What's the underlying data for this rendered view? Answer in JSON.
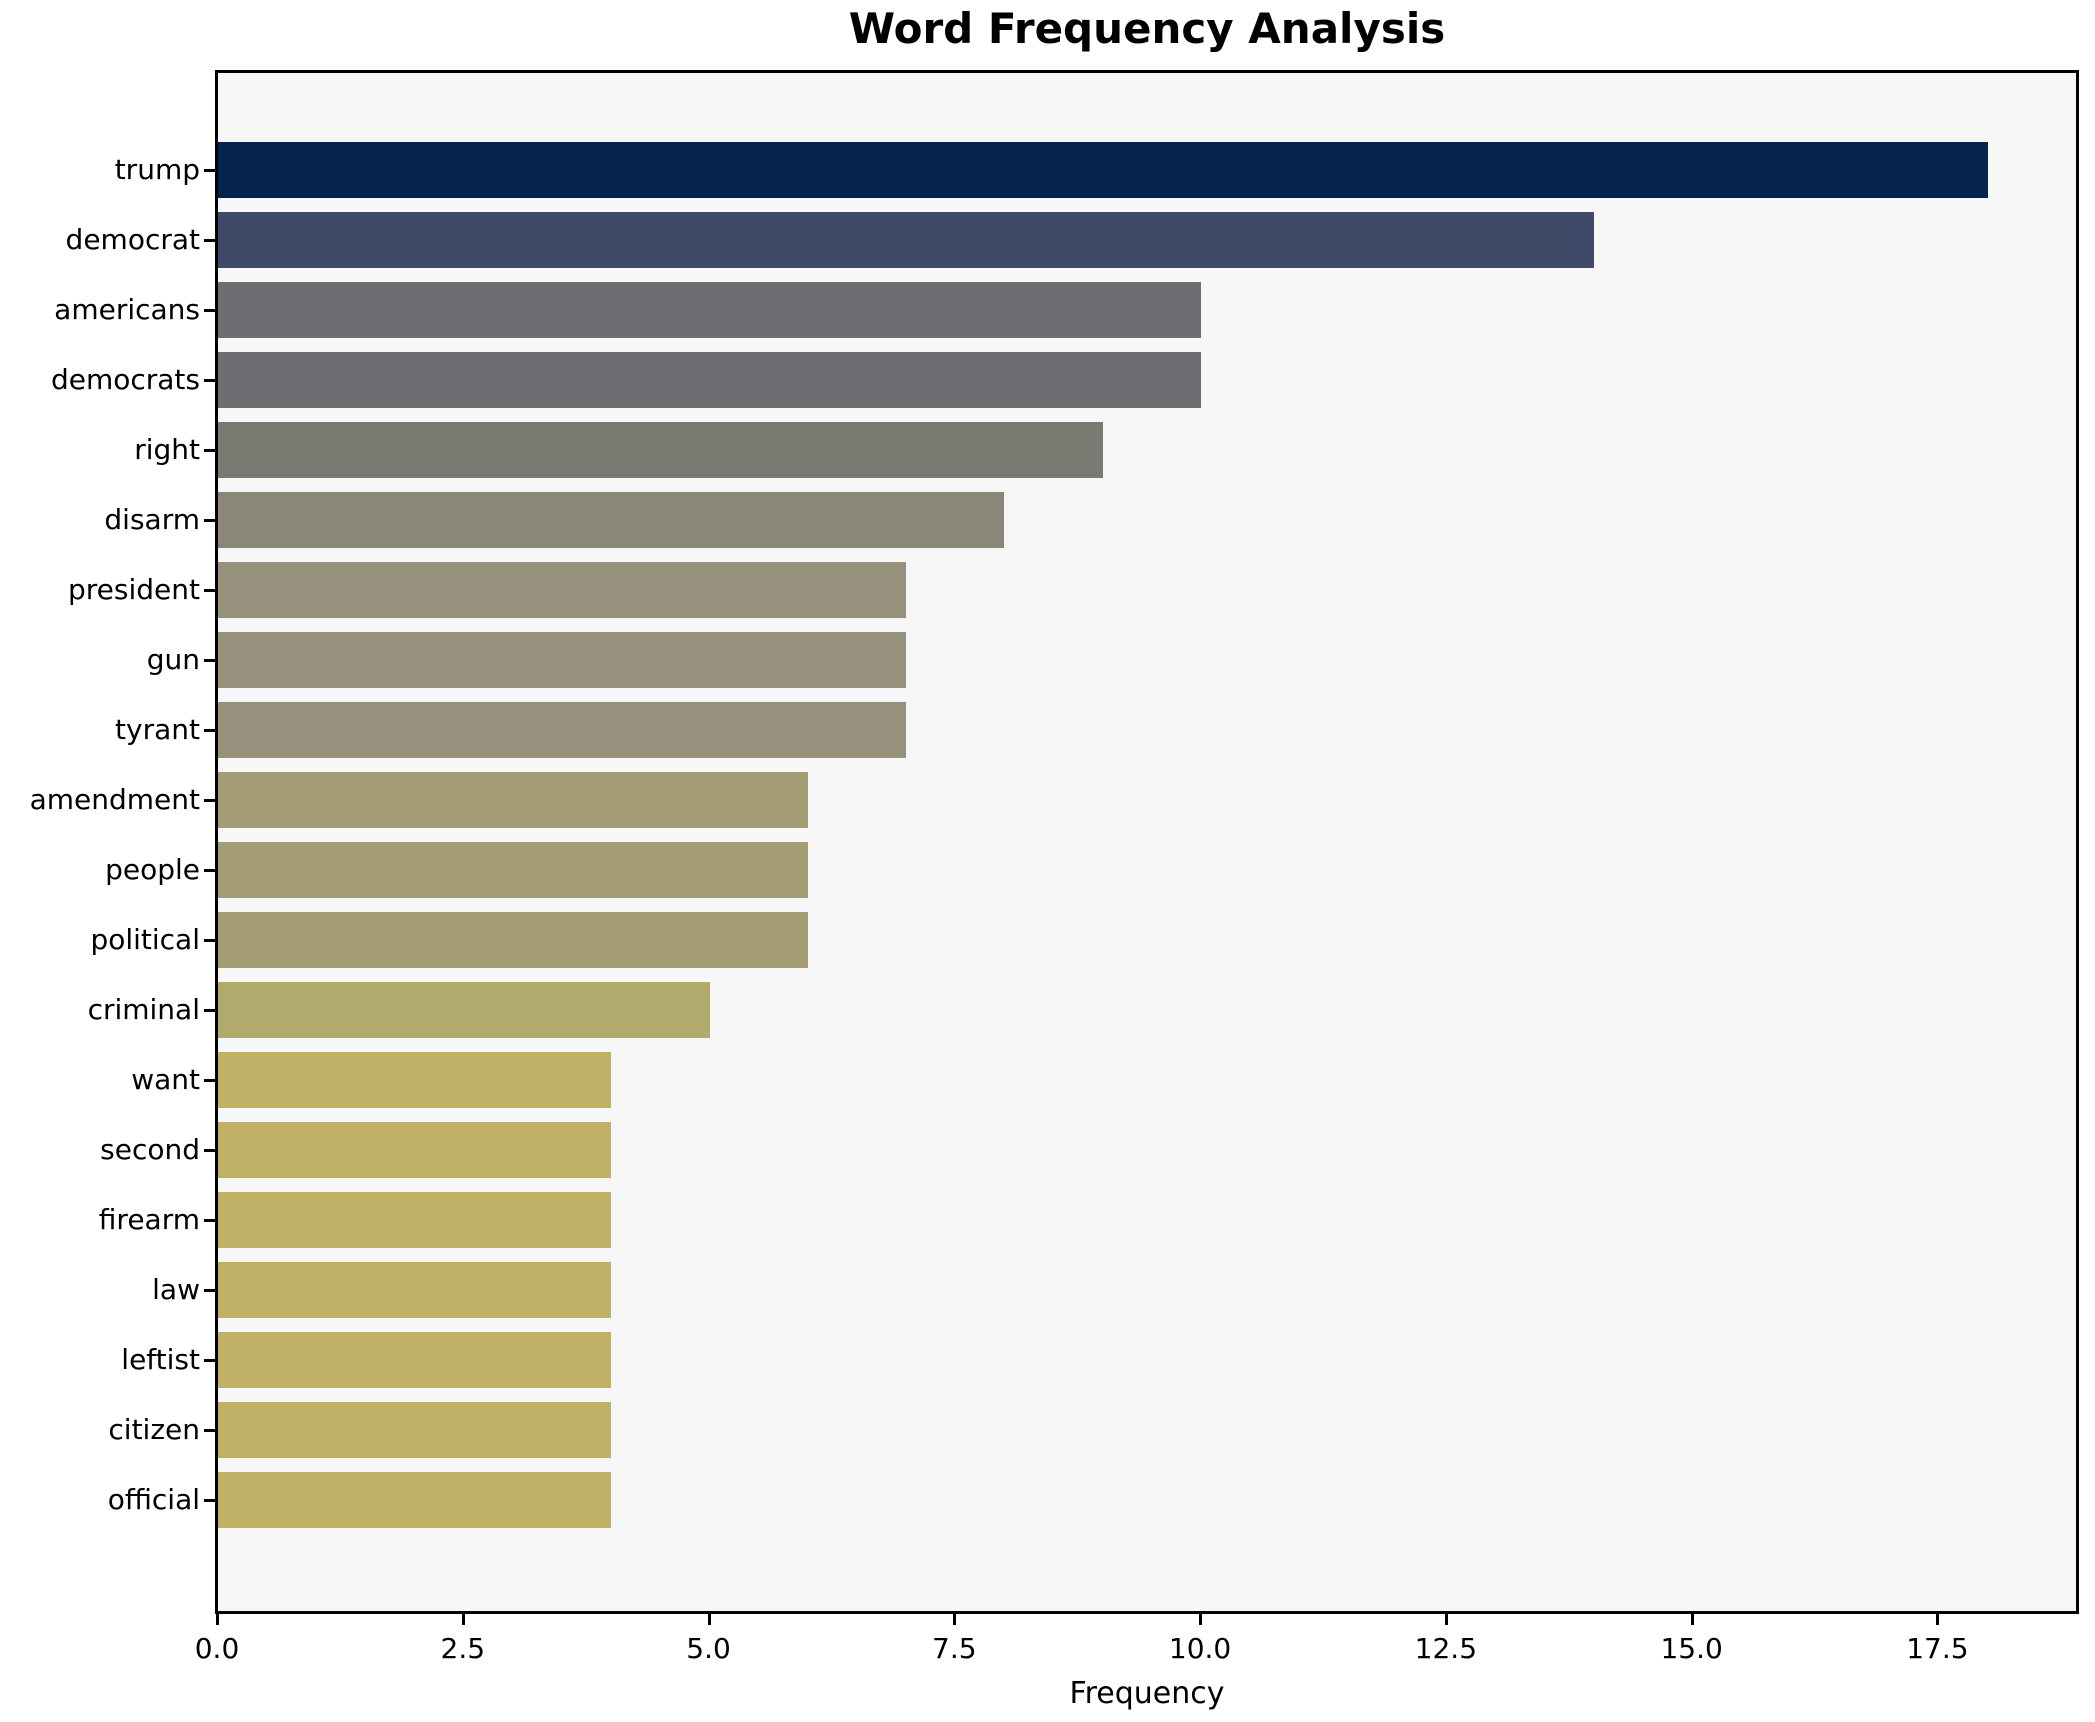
{
  "title": "Word Frequency Analysis",
  "chart_data": {
    "type": "bar",
    "orientation": "horizontal",
    "title": "Word Frequency Analysis",
    "xlabel": "Frequency",
    "ylabel": "",
    "categories": [
      "trump",
      "democrat",
      "americans",
      "democrats",
      "right",
      "disarm",
      "president",
      "gun",
      "tyrant",
      "amendment",
      "people",
      "political",
      "criminal",
      "want",
      "second",
      "firearm",
      "law",
      "leftist",
      "citizen",
      "official"
    ],
    "values": [
      18,
      14,
      10,
      10,
      9,
      8,
      7,
      7,
      7,
      6,
      6,
      6,
      5,
      4,
      4,
      4,
      4,
      4,
      4,
      4
    ],
    "bar_colors": [
      "#06234d",
      "#3e4a68",
      "#6d6e71",
      "#6d6e71",
      "#797a72",
      "#8a8779",
      "#96917c",
      "#96917c",
      "#96917c",
      "#a49d74",
      "#a49d74",
      "#a49d74",
      "#b2a96c",
      "#c1b166",
      "#c1b166",
      "#c1b166",
      "#c1b166",
      "#c1b166",
      "#c1b166",
      "#c1b166"
    ],
    "xlim": [
      0,
      18.92
    ],
    "xticks": [
      0,
      2.5,
      5,
      7.5,
      10,
      12.5,
      15,
      17.5
    ],
    "xtick_labels": [
      "0.0",
      "2.5",
      "5.0",
      "7.5",
      "10.0",
      "12.5",
      "15.0",
      "17.5"
    ],
    "grid": false,
    "legend": null,
    "plot_bg": "#f7f7f7",
    "fig_bg": "#ffffff",
    "spine_color": "#000000"
  }
}
